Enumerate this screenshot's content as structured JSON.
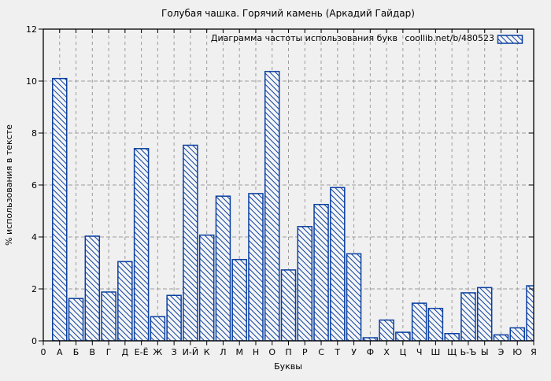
{
  "figure": {
    "background": "#f0f0f0"
  },
  "chart_data": {
    "type": "bar",
    "title": "Голубая чашка. Горячий камень (Аркадий Гайдар)",
    "xlabel": "Буквы",
    "ylabel": "% использования в тексте",
    "origin_tick_label": "0",
    "categories": [
      "А",
      "Б",
      "В",
      "Г",
      "Д",
      "Е-Ё",
      "Ж",
      "З",
      "И-Й",
      "К",
      "Л",
      "М",
      "Н",
      "О",
      "П",
      "Р",
      "С",
      "Т",
      "У",
      "Ф",
      "Х",
      "Ц",
      "Ч",
      "Ш",
      "Щ",
      "Ь-Ъ",
      "Ы",
      "Э",
      "Ю",
      "Я"
    ],
    "values": [
      10.1,
      1.63,
      4.03,
      1.88,
      3.05,
      7.4,
      0.93,
      1.75,
      7.53,
      4.07,
      5.57,
      3.13,
      5.67,
      10.37,
      2.73,
      4.4,
      5.25,
      5.9,
      3.35,
      0.12,
      0.8,
      0.33,
      1.45,
      1.25,
      0.28,
      1.85,
      2.05,
      0.23,
      0.5,
      2.12
    ],
    "ylim": [
      0,
      12
    ],
    "yticks": [
      0,
      2,
      4,
      6,
      8,
      10,
      12
    ],
    "grid": true,
    "bar_style": "diagonal-hatch",
    "legend": {
      "label": "Диаграмма частоты использования букв",
      "source": "coollib.net/b/480523",
      "position": "top-right-inside"
    },
    "colors": {
      "bar_border": "#0b3fa0",
      "bar_hatch": "#0b3fa0",
      "bar_fill": "#f4f5f6",
      "grid": "#9c9c9c",
      "text": "#000000",
      "background": "#f0f0f0"
    }
  }
}
